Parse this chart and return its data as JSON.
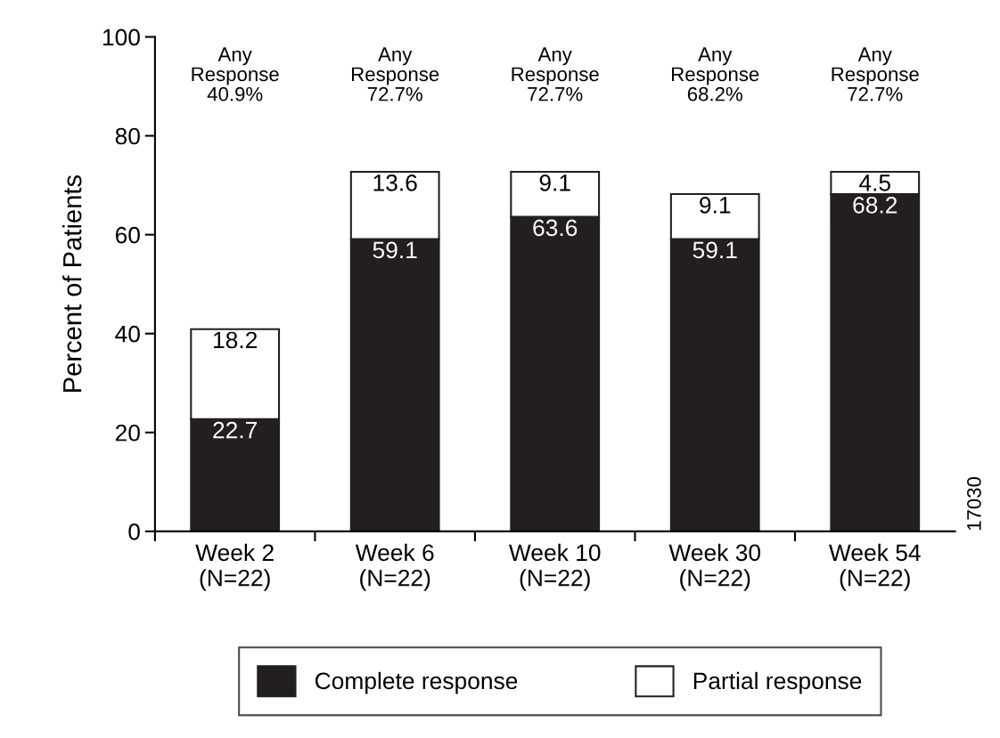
{
  "chart_data": {
    "type": "bar",
    "stacked": true,
    "ylabel": "Percent of Patients",
    "categories": [
      "Week 2\n(N=22)",
      "Week 6\n(N=22)",
      "Week 10\n(N=22)",
      "Week 30\n(N=22)",
      "Week 54\n(N=22)"
    ],
    "series": [
      {
        "name": "Complete response",
        "color": "#231f20",
        "values": [
          22.7,
          59.1,
          63.6,
          59.1,
          68.2
        ]
      },
      {
        "name": "Partial response",
        "color": "#ffffff",
        "values": [
          18.2,
          13.6,
          9.1,
          9.1,
          4.5
        ]
      }
    ],
    "ylim": [
      0,
      100
    ],
    "yticks": [
      0,
      20,
      40,
      60,
      80,
      100
    ],
    "grid": false,
    "legend": "bottom",
    "data_labels": true,
    "annotations": [
      "Any\nResponse\n40.9%",
      "Any\nResponse\n72.7%",
      "Any\nResponse\n72.7%",
      "Any\nResponse\n68.2%",
      "Any\nResponse\n72.7%",
      "17030"
    ]
  }
}
